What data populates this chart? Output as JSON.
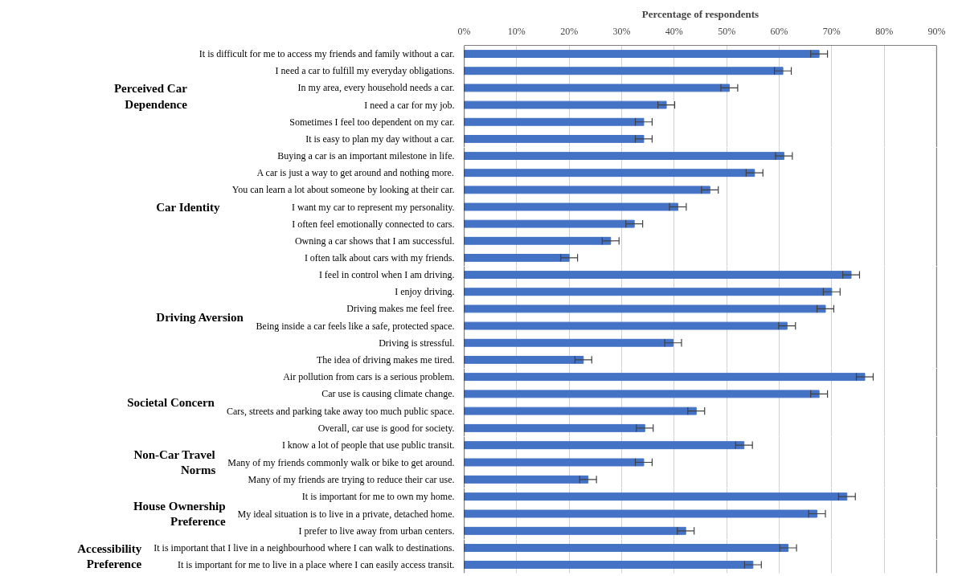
{
  "chart_data": [
    {
      "type": "bar",
      "orientation": "horizontal",
      "title": "Perceived Car Dependence",
      "xlabel": "Percentage of respondents",
      "categories": [
        "It is difficult for me to access my friends and family without a car.",
        "I need a car to fulfill my everyday obligations.",
        "In my area, every household needs a car.",
        "I need a car for my job.",
        "Sometimes I feel too dependent on my car.",
        "It is easy to plan my day without a car."
      ],
      "values": [
        67.6,
        60.7,
        50.5,
        38.5,
        34.2,
        34.2
      ],
      "errors": [
        1.6,
        1.6,
        1.6,
        1.6,
        1.6,
        1.6
      ],
      "color": "#4472c4",
      "xlim": [
        0,
        90
      ],
      "xticks": [
        {
          "value": 0,
          "label": "0%"
        },
        {
          "value": 10,
          "label": "10%"
        },
        {
          "value": 20,
          "label": "20%"
        },
        {
          "value": 30,
          "label": "30%"
        },
        {
          "value": 40,
          "label": "40%"
        },
        {
          "value": 50,
          "label": "50%"
        },
        {
          "value": 60,
          "label": "60%"
        },
        {
          "value": 70,
          "label": "70%"
        },
        {
          "value": 80,
          "label": "80%"
        },
        {
          "value": 90,
          "label": "90%"
        }
      ],
      "grid": "x"
    },
    {
      "type": "bar",
      "orientation": "horizontal",
      "title": "Car Identity",
      "categories": [
        "Buying a car is an important milestone in life.",
        "A car is just a way to get around and nothing more.",
        "You can learn a lot about someone by looking at their car.",
        "I want my car to represent my personality.",
        "I often feel emotionally connected to cars.",
        "Owning a car shows that I am successful.",
        "I often talk about cars with my friends."
      ],
      "values": [
        60.9,
        55.3,
        46.8,
        40.7,
        32.4,
        27.9,
        20.0
      ],
      "errors": [
        1.6,
        1.6,
        1.6,
        1.6,
        1.6,
        1.6,
        1.6
      ],
      "color": "#4472c4",
      "xlim": [
        0,
        90
      ],
      "xticks": [
        0,
        10,
        20,
        30,
        40,
        50,
        60,
        70,
        80,
        90
      ],
      "grid": "x",
      "tick_labels": "y"
    },
    {
      "type": "bar",
      "orientation": "horizontal",
      "title": "Driving Aversion",
      "categories": [
        "I feel in control when I am driving.",
        "I enjoy driving.",
        "Driving makes me feel free.",
        "Being inside a car feels like a safe, protected space.",
        "Driving is stressful.",
        "The idea of driving makes me tired."
      ],
      "values": [
        73.7,
        70.0,
        68.8,
        61.5,
        39.8,
        22.7
      ],
      "errors": [
        1.6,
        1.6,
        1.6,
        1.6,
        1.6,
        1.6
      ],
      "color": "#4472c4",
      "xlim": [
        0,
        90
      ],
      "xticks": [
        0,
        10,
        20,
        30,
        40,
        50,
        60,
        70,
        80,
        90
      ],
      "grid": "x",
      "tick_labels": "y"
    },
    {
      "type": "bar",
      "orientation": "horizontal",
      "title": "Societal Concern",
      "categories": [
        "Air pollution from cars is a serious problem.",
        "Car use is causing climate change.",
        "Cars, streets and parking take away too much public space.",
        "Overall, car use is good for society."
      ],
      "values": [
        76.3,
        67.6,
        44.2,
        34.4
      ],
      "errors": [
        1.6,
        1.6,
        1.6,
        1.6
      ],
      "color": "#4472c4",
      "xlim": [
        0,
        90
      ],
      "xticks": [
        0,
        10,
        20,
        30,
        40,
        50,
        60,
        70,
        80,
        90
      ],
      "grid": "x",
      "tick_labels": "y"
    },
    {
      "type": "bar",
      "orientation": "horizontal",
      "title": "Non-Car Travel Norms",
      "categories": [
        "I know a lot of people that use public transit.",
        "Many of my friends commonly walk or bike to get around.",
        "Many of my friends are trying to reduce their car use."
      ],
      "values": [
        53.3,
        34.2,
        23.6
      ],
      "errors": [
        1.6,
        1.6,
        1.6
      ],
      "color": "#4472c4",
      "xlim": [
        0,
        90
      ],
      "xticks": [
        0,
        10,
        20,
        30,
        40,
        50,
        60,
        70,
        80,
        90
      ],
      "grid": "x",
      "tick_labels": "y"
    },
    {
      "type": "bar",
      "orientation": "horizontal",
      "title": "House Ownership Preference",
      "categories": [
        "It is important for me to own my home.",
        "My ideal situation is to live in a private, detached home.",
        "I prefer to live away from urban centers."
      ],
      "values": [
        72.9,
        67.2,
        42.2
      ],
      "errors": [
        1.6,
        1.6,
        1.6
      ],
      "color": "#4472c4",
      "xlim": [
        0,
        90
      ],
      "xticks": [
        0,
        10,
        20,
        30,
        40,
        50,
        60,
        70,
        80,
        90
      ],
      "grid": "x",
      "tick_labels": "y"
    },
    {
      "type": "bar",
      "orientation": "horizontal",
      "title": "Accessibility Preference",
      "categories": [
        "It is important that I live in a neighbourhood where I can walk to destinations.",
        "It is important for me to live in a place where I can easily access transit."
      ],
      "values": [
        61.7,
        55.0
      ],
      "errors": [
        1.6,
        1.6
      ],
      "color": "#4472c4",
      "xlim": [
        0,
        90
      ],
      "xticks": [
        0,
        10,
        20,
        30,
        40,
        50,
        60,
        70,
        80,
        90
      ],
      "grid": "x",
      "tick_labels": "y"
    }
  ]
}
